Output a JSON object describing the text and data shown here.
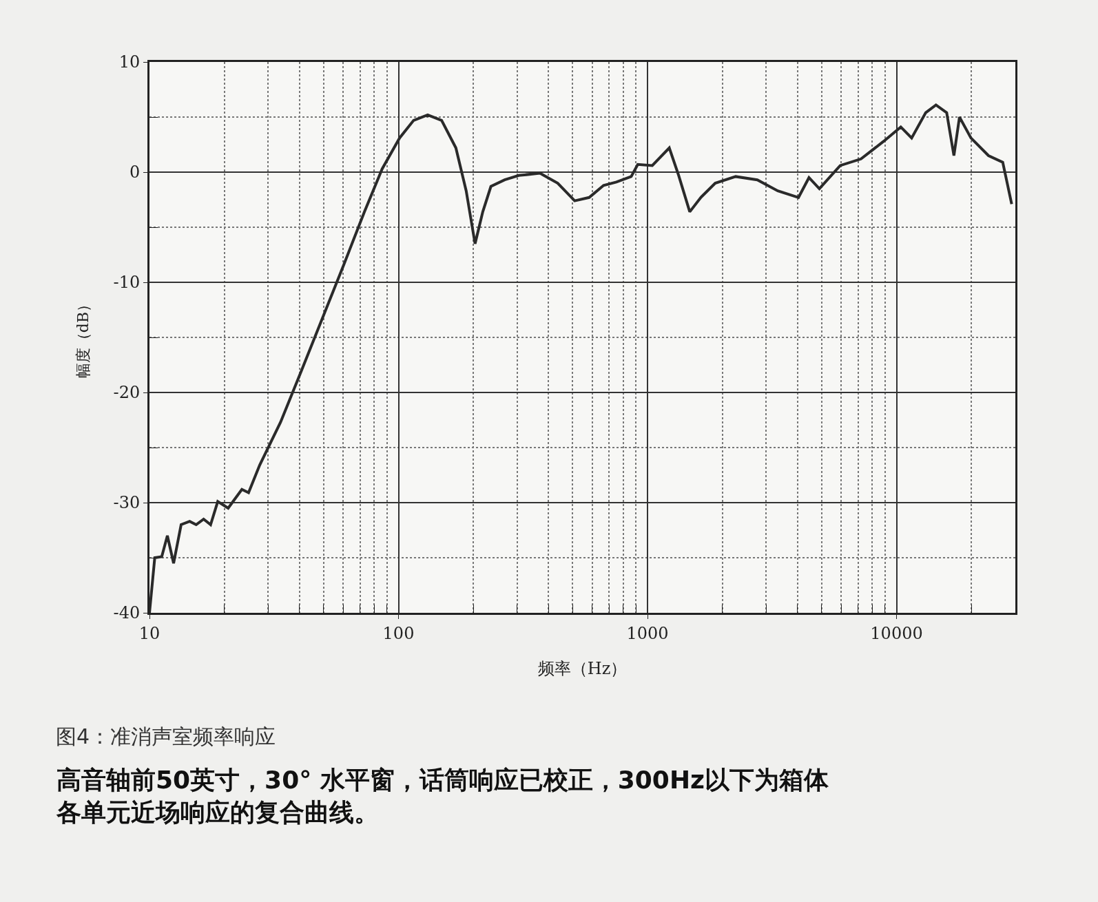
{
  "chart_data": {
    "type": "line",
    "xlabel": "频率（Hz）",
    "ylabel": "幅度（dB）",
    "log": "x",
    "grid": true,
    "marker": "none",
    "line_style": "solid",
    "xlim": [
      10,
      30000
    ],
    "ylim": [
      -40,
      10
    ],
    "xticks": [
      10,
      {
        "value": 20,
        "label": null
      },
      {
        "value": 30,
        "label": null
      },
      {
        "value": 40,
        "label": null
      },
      {
        "value": 50,
        "label": null
      },
      {
        "value": 60,
        "label": null
      },
      {
        "value": 70,
        "label": null
      },
      {
        "value": 80,
        "label": null
      },
      {
        "value": 90,
        "label": null
      },
      100,
      {
        "value": 200,
        "label": null
      },
      {
        "value": 300,
        "label": null
      },
      {
        "value": 400,
        "label": null
      },
      {
        "value": 500,
        "label": null
      },
      {
        "value": 600,
        "label": null
      },
      {
        "value": 700,
        "label": null
      },
      {
        "value": 800,
        "label": null
      },
      {
        "value": 900,
        "label": null
      },
      1000,
      {
        "value": 2000,
        "label": null
      },
      {
        "value": 3000,
        "label": null
      },
      {
        "value": 4000,
        "label": null
      },
      {
        "value": 5000,
        "label": null
      },
      {
        "value": 6000,
        "label": null
      },
      {
        "value": 7000,
        "label": null
      },
      {
        "value": 8000,
        "label": null
      },
      {
        "value": 9000,
        "label": null
      },
      10000,
      {
        "value": 20000,
        "label": null
      }
    ],
    "yticks": [
      -40,
      {
        "value": -35,
        "label": null
      },
      -30,
      {
        "value": -25,
        "label": null
      },
      -20,
      {
        "value": -15,
        "label": null
      },
      -10,
      {
        "value": -5,
        "label": null
      },
      0,
      {
        "value": 5,
        "label": null
      },
      10
    ],
    "x": [
      10,
      10.5,
      11.2,
      11.8,
      12.5,
      13.4,
      14.5,
      15.4,
      16.5,
      17.6,
      18.8,
      20.7,
      23.5,
      25,
      27.7,
      33.6,
      40.8,
      49.6,
      60.3,
      73,
      86,
      101,
      115,
      131,
      149,
      170,
      187,
      203,
      218,
      235,
      267,
      304,
      370,
      436,
      510,
      583,
      666,
      750,
      860,
      914,
      1045,
      1223,
      1334,
      1478,
      1637,
      1870,
      2260,
      2760,
      3335,
      4040,
      4450,
      4900,
      5940,
      7200,
      8880,
      10400,
      11500,
      13100,
      14400,
      15900,
      17000,
      17900,
      19900,
      23400,
      26700,
      29000
    ],
    "series": [
      {
        "color": "#2a2a2a",
        "values": [
          -40,
          -35,
          -34.9,
          -33,
          -35.5,
          -32,
          -31.7,
          -32,
          -31.5,
          -32,
          -29.9,
          -30.5,
          -28.8,
          -29.1,
          -26.6,
          -22.7,
          -18,
          -13.2,
          -8.4,
          -3.6,
          0.3,
          3.1,
          4.7,
          5.2,
          4.7,
          2.2,
          -1.7,
          -6.5,
          -3.6,
          -1.3,
          -0.7,
          -0.3,
          -0.1,
          -1,
          -2.6,
          -2.3,
          -1.2,
          -0.9,
          -0.4,
          0.7,
          0.6,
          2.2,
          -0.3,
          -3.6,
          -2.3,
          -1,
          -0.4,
          -0.7,
          -1.7,
          -2.3,
          -0.5,
          -1.5,
          0.6,
          1.2,
          2.8,
          4.1,
          3.1,
          5.4,
          6.1,
          5.4,
          1.5,
          5,
          3.1,
          1.5,
          0.9,
          -2.9
        ]
      }
    ],
    "annotations": [
      "图4：准消声室频率响应",
      "高音轴前50英寸，30° 水平窗，话筒响应已校正，300Hz以下为箱体各单元近场响应的复合曲线。"
    ]
  }
}
